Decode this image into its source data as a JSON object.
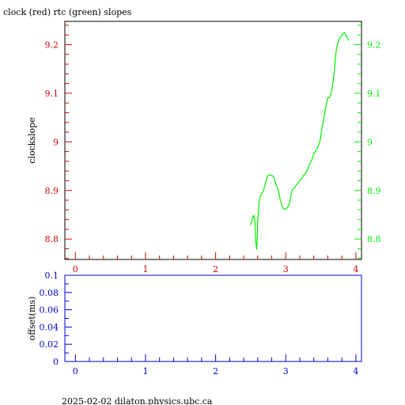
{
  "title": "clock (red) rtc (green) slopes",
  "footer": "2025-02-02 dilaton.physics.ubc.ca",
  "colors": {
    "red": "#cc0000",
    "green": "#00ee00",
    "blue": "#0000cc",
    "black": "#000000"
  },
  "chart_data": [
    {
      "type": "line",
      "title": "clock (red) rtc (green) slopes",
      "xlabel": "",
      "ylabel": "clockslope",
      "xlim": [
        -0.15,
        4.08
      ],
      "ylim": [
        8.758,
        9.248
      ],
      "x_ticks": [
        "0",
        "1",
        "2",
        "3",
        "4"
      ],
      "y_ticks_left": [
        "8.8",
        "8.9",
        "9",
        "9.1",
        "9.2"
      ],
      "y_ticks_right": [
        "8.8",
        "8.9",
        "9",
        "9.1",
        "9.2"
      ],
      "grid": false,
      "series": [
        {
          "color": "#00ee00",
          "x": [
            2.5,
            2.52,
            2.54,
            2.555,
            2.565,
            2.575,
            2.585,
            2.595,
            2.6,
            2.62,
            2.64,
            2.66,
            2.68,
            2.7,
            2.72,
            2.74,
            2.76,
            2.78,
            2.8,
            2.83,
            2.86,
            2.88,
            2.9,
            2.92,
            2.94,
            2.96,
            2.98,
            3.0,
            3.02,
            3.04,
            3.06,
            3.08,
            3.1,
            3.13,
            3.16,
            3.19,
            3.22,
            3.25,
            3.28,
            3.31,
            3.34,
            3.37,
            3.4,
            3.43,
            3.46,
            3.49,
            3.52,
            3.55,
            3.57,
            3.59,
            3.6,
            3.62,
            3.64,
            3.66,
            3.68,
            3.7,
            3.72,
            3.74,
            3.76,
            3.78,
            3.8,
            3.82,
            3.84,
            3.86,
            3.88,
            3.9
          ],
          "values": [
            8.829,
            8.839,
            8.849,
            8.843,
            8.822,
            8.789,
            8.779,
            8.805,
            8.836,
            8.876,
            8.889,
            8.894,
            8.898,
            8.91,
            8.92,
            8.93,
            8.932,
            8.932,
            8.931,
            8.928,
            8.912,
            8.906,
            8.897,
            8.881,
            8.872,
            8.864,
            8.861,
            8.862,
            8.864,
            8.868,
            8.878,
            8.895,
            8.902,
            8.907,
            8.913,
            8.918,
            8.923,
            8.93,
            8.935,
            8.942,
            8.955,
            8.962,
            8.976,
            8.982,
            8.99,
            9.003,
            9.032,
            9.054,
            9.07,
            9.086,
            9.091,
            9.091,
            9.096,
            9.11,
            9.128,
            9.157,
            9.19,
            9.202,
            9.212,
            9.215,
            9.22,
            9.223,
            9.225,
            9.219,
            9.213,
            9.208
          ]
        }
      ]
    },
    {
      "type": "line",
      "title": "",
      "xlabel": "",
      "ylabel": "offset(ms)",
      "xlim": [
        -0.15,
        4.08
      ],
      "ylim": [
        0,
        0.1
      ],
      "x_ticks": [
        "0",
        "1",
        "2",
        "3",
        "4"
      ],
      "y_ticks_left": [
        "0",
        "0.02",
        "0.04",
        "0.06",
        "0.08",
        "0.1"
      ],
      "grid": false,
      "series": []
    }
  ]
}
